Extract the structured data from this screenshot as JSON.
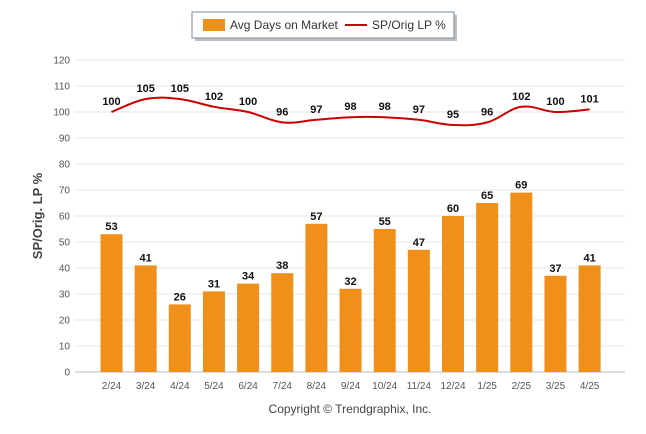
{
  "chart_data": {
    "type": "bar",
    "categories": [
      "2/24",
      "3/24",
      "4/24",
      "5/24",
      "6/24",
      "7/24",
      "8/24",
      "9/24",
      "10/24",
      "11/24",
      "12/24",
      "1/25",
      "2/25",
      "3/25",
      "4/25"
    ],
    "series": [
      {
        "name": "Avg Days on Market",
        "type": "bar",
        "color": "#F0901A",
        "values": [
          53,
          41,
          26,
          31,
          34,
          38,
          57,
          32,
          55,
          47,
          60,
          65,
          69,
          37,
          41
        ]
      },
      {
        "name": "SP/Orig LP %",
        "type": "line",
        "color": "#CC0000",
        "values": [
          100,
          105,
          105,
          102,
          100,
          96,
          97,
          98,
          98,
          97,
          95,
          96,
          102,
          100,
          101
        ]
      }
    ],
    "ylabel": "SP/Orig. LP %",
    "ylim": [
      0,
      120
    ],
    "yticks": [
      0,
      10,
      20,
      30,
      40,
      50,
      60,
      70,
      80,
      90,
      100,
      110,
      120
    ],
    "grid": true,
    "legend_position": "top-center"
  },
  "footer": {
    "copyright": "Copyright © Trendgraphix, Inc."
  }
}
